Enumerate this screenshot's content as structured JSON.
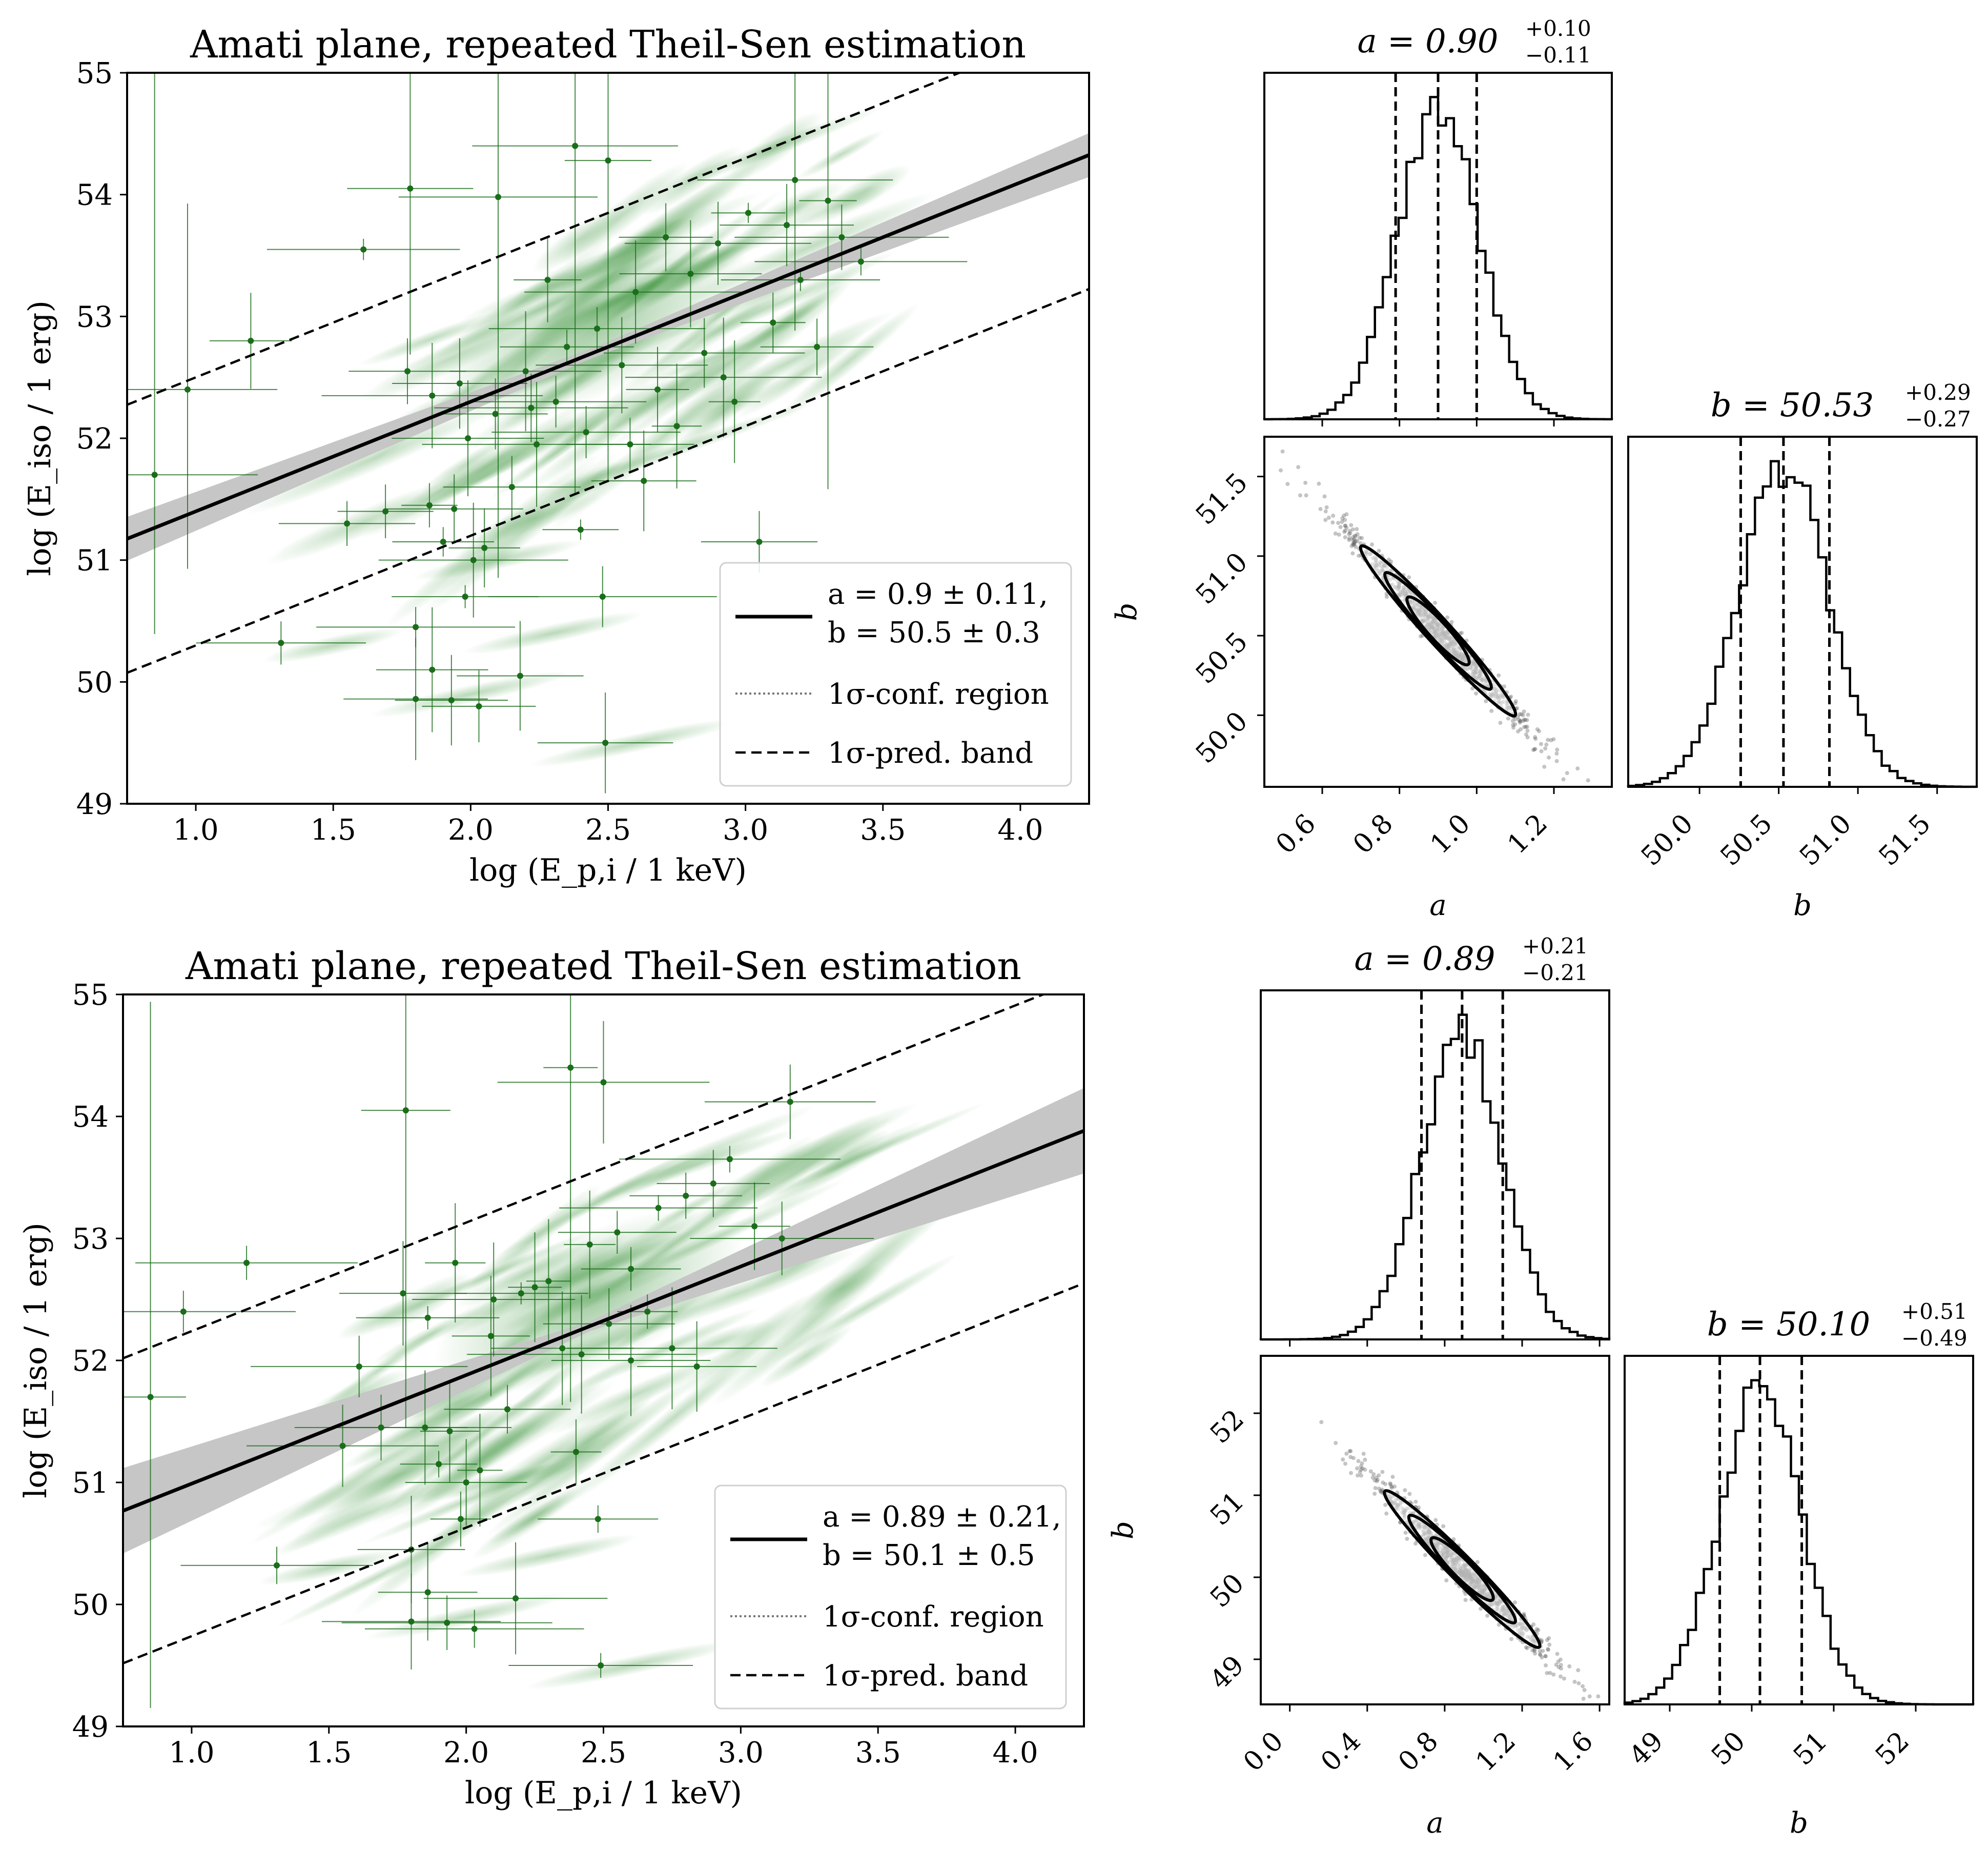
{
  "colors": {
    "accent_green": "#1a6e1a",
    "cloud_green": "#2e8b2e",
    "band_grey": "#c6c6c6",
    "ink": "#000000"
  },
  "chart_data": [
    {
      "id": "top_amati",
      "type": "scatter",
      "title": "Amati plane, repeated Theil-Sen estimation",
      "xlabel": "log (E_p,i / 1 keV)",
      "ylabel": "log (E_iso / 1 erg)",
      "xlim": [
        0.75,
        4.25
      ],
      "ylim": [
        49,
        55
      ],
      "xticks": [
        "1.0",
        "1.5",
        "2.0",
        "2.5",
        "3.0",
        "3.5",
        "4.0"
      ],
      "yticks": [
        "49",
        "50",
        "51",
        "52",
        "53",
        "54",
        "55"
      ],
      "fit": {
        "slope": 0.9,
        "intercept": 50.5,
        "conf_half_width_at_ends": [
          0.18,
          0.18
        ],
        "pred_offset": 1.1
      },
      "legend": {
        "placement": "lower right",
        "entries": [
          {
            "line1": "a = 0.9 ± 0.11,",
            "line2": "b = 50.5 ± 0.3",
            "style": "solid"
          },
          {
            "line1": "1σ-conf. region",
            "style": "dotted"
          },
          {
            "line1": "1σ-pred. band",
            "style": "dashed"
          }
        ]
      },
      "points": [
        [
          0.85,
          51.7
        ],
        [
          0.97,
          52.4
        ],
        [
          1.2,
          52.8
        ],
        [
          1.31,
          50.32
        ],
        [
          1.55,
          51.3
        ],
        [
          1.61,
          53.55
        ],
        [
          1.69,
          51.4
        ],
        [
          1.77,
          52.55
        ],
        [
          1.78,
          54.05
        ],
        [
          1.8,
          49.86
        ],
        [
          1.8,
          50.45
        ],
        [
          1.85,
          51.45
        ],
        [
          1.86,
          52.35
        ],
        [
          1.86,
          50.1
        ],
        [
          1.9,
          51.15
        ],
        [
          1.93,
          49.85
        ],
        [
          1.94,
          51.42
        ],
        [
          1.96,
          52.45
        ],
        [
          1.98,
          50.7
        ],
        [
          1.99,
          52.0
        ],
        [
          2.01,
          51.0
        ],
        [
          2.03,
          49.8
        ],
        [
          2.05,
          51.1
        ],
        [
          2.09,
          52.2
        ],
        [
          2.1,
          53.98
        ],
        [
          2.15,
          51.6
        ],
        [
          2.18,
          50.05
        ],
        [
          2.2,
          52.55
        ],
        [
          2.24,
          51.95
        ],
        [
          2.28,
          53.3
        ],
        [
          2.31,
          52.3
        ],
        [
          2.35,
          52.75
        ],
        [
          2.38,
          54.4
        ],
        [
          2.4,
          51.25
        ],
        [
          2.42,
          52.05
        ],
        [
          2.46,
          52.9
        ],
        [
          2.48,
          50.7
        ],
        [
          2.5,
          54.28
        ],
        [
          2.49,
          49.5
        ],
        [
          2.55,
          52.6
        ],
        [
          2.6,
          53.2
        ],
        [
          2.63,
          51.65
        ],
        [
          2.68,
          52.4
        ],
        [
          2.71,
          53.65
        ],
        [
          2.75,
          52.1
        ],
        [
          2.8,
          53.35
        ],
        [
          2.85,
          52.7
        ],
        [
          2.9,
          53.6
        ],
        [
          2.96,
          52.3
        ],
        [
          3.01,
          53.85
        ],
        [
          3.05,
          51.15
        ],
        [
          3.1,
          52.95
        ],
        [
          3.15,
          53.75
        ],
        [
          3.18,
          54.12
        ],
        [
          3.2,
          53.3
        ],
        [
          3.26,
          52.75
        ],
        [
          3.3,
          53.95
        ],
        [
          3.35,
          53.65
        ],
        [
          3.42,
          53.45
        ],
        [
          2.22,
          52.25
        ],
        [
          2.58,
          51.95
        ],
        [
          2.92,
          52.5
        ]
      ]
    },
    {
      "id": "top_corner",
      "type": "corner",
      "a_title": "a = 0.90",
      "a_sup": "+0.10",
      "a_sub": "−0.11",
      "b_title": "b = 50.53",
      "b_sup": "+0.29",
      "b_sub": "−0.27",
      "a_label": "a",
      "b_label": "b",
      "a_mean": 0.9,
      "a_sd": 0.105,
      "b_mean": 50.53,
      "b_sd": 0.28,
      "a_quantiles": [
        0.79,
        0.9,
        1.0
      ],
      "b_quantiles": [
        50.26,
        50.53,
        50.82
      ],
      "a_range": [
        0.45,
        1.35
      ],
      "b_range": [
        49.55,
        51.75
      ],
      "a_ticks": [
        "0.6",
        "0.8",
        "1.0",
        "1.2"
      ],
      "b_ticks_scatter": [
        "50.0",
        "50.5",
        "51.0",
        "51.5"
      ],
      "b_ticks_hist": [
        "50.0",
        "50.5",
        "51.0",
        "51.5"
      ]
    },
    {
      "id": "bottom_amati",
      "type": "scatter",
      "title": "Amati plane, repeated Theil-Sen estimation",
      "xlabel": "log (E_p,i / 1 keV)",
      "ylabel": "log (E_iso / 1 erg)",
      "xlim": [
        0.75,
        4.25
      ],
      "ylim": [
        49,
        55
      ],
      "xticks": [
        "1.0",
        "1.5",
        "2.0",
        "2.5",
        "3.0",
        "3.5",
        "4.0"
      ],
      "yticks": [
        "49",
        "50",
        "51",
        "52",
        "53",
        "54",
        "55"
      ],
      "fit": {
        "slope": 0.89,
        "intercept": 50.1,
        "conf_half_width_at_ends": [
          0.35,
          0.35
        ],
        "pred_offset": 1.25
      },
      "legend": {
        "placement": "lower right",
        "entries": [
          {
            "line1": "a = 0.89 ± 0.21,",
            "line2": "b = 50.1 ± 0.5",
            "style": "solid"
          },
          {
            "line1": "1σ-conf. region",
            "style": "dotted"
          },
          {
            "line1": "1σ-pred. band",
            "style": "dashed"
          }
        ]
      },
      "points": [
        [
          0.85,
          51.7
        ],
        [
          0.97,
          52.4
        ],
        [
          1.2,
          52.8
        ],
        [
          1.31,
          50.32
        ],
        [
          1.55,
          51.3
        ],
        [
          1.61,
          51.95
        ],
        [
          1.69,
          51.45
        ],
        [
          1.77,
          52.55
        ],
        [
          1.78,
          54.05
        ],
        [
          1.8,
          49.86
        ],
        [
          1.8,
          50.45
        ],
        [
          1.85,
          51.45
        ],
        [
          1.86,
          52.35
        ],
        [
          1.86,
          50.1
        ],
        [
          1.9,
          51.15
        ],
        [
          1.93,
          49.85
        ],
        [
          1.94,
          51.42
        ],
        [
          1.96,
          52.8
        ],
        [
          1.98,
          50.7
        ],
        [
          2.0,
          51.0
        ],
        [
          2.03,
          49.8
        ],
        [
          2.05,
          51.1
        ],
        [
          2.09,
          52.2
        ],
        [
          2.1,
          52.5
        ],
        [
          2.15,
          51.6
        ],
        [
          2.18,
          50.05
        ],
        [
          2.2,
          52.55
        ],
        [
          2.3,
          52.65
        ],
        [
          2.35,
          52.1
        ],
        [
          2.38,
          54.4
        ],
        [
          2.4,
          51.25
        ],
        [
          2.42,
          52.05
        ],
        [
          2.45,
          52.95
        ],
        [
          2.48,
          50.7
        ],
        [
          2.5,
          54.28
        ],
        [
          2.49,
          49.5
        ],
        [
          2.52,
          52.3
        ],
        [
          2.55,
          53.05
        ],
        [
          2.6,
          52.75
        ],
        [
          2.66,
          52.4
        ],
        [
          2.7,
          53.25
        ],
        [
          2.75,
          52.1
        ],
        [
          2.8,
          53.35
        ],
        [
          2.84,
          51.95
        ],
        [
          2.9,
          53.45
        ],
        [
          2.96,
          53.65
        ],
        [
          3.05,
          53.1
        ],
        [
          3.15,
          53.0
        ],
        [
          3.18,
          54.12
        ],
        [
          2.6,
          52.0
        ],
        [
          2.25,
          52.6
        ]
      ]
    },
    {
      "id": "bottom_corner",
      "type": "corner",
      "a_title": "a = 0.89",
      "a_sup": "+0.21",
      "a_sub": "−0.21",
      "b_title": "b = 50.10",
      "b_sup": "+0.51",
      "b_sub": "−0.49",
      "a_label": "a",
      "b_label": "b",
      "a_mean": 0.89,
      "a_sd": 0.21,
      "b_mean": 50.1,
      "b_sd": 0.5,
      "a_quantiles": [
        0.68,
        0.89,
        1.1
      ],
      "b_quantiles": [
        49.61,
        50.1,
        50.61
      ],
      "a_range": [
        -0.15,
        1.65
      ],
      "b_range": [
        48.45,
        52.7
      ],
      "a_ticks": [
        "0.0",
        "0.4",
        "0.8",
        "1.2",
        "1.6"
      ],
      "b_ticks_scatter": [
        "49",
        "50",
        "51",
        "52"
      ],
      "b_ticks_hist": [
        "49",
        "50",
        "51",
        "52"
      ]
    }
  ]
}
